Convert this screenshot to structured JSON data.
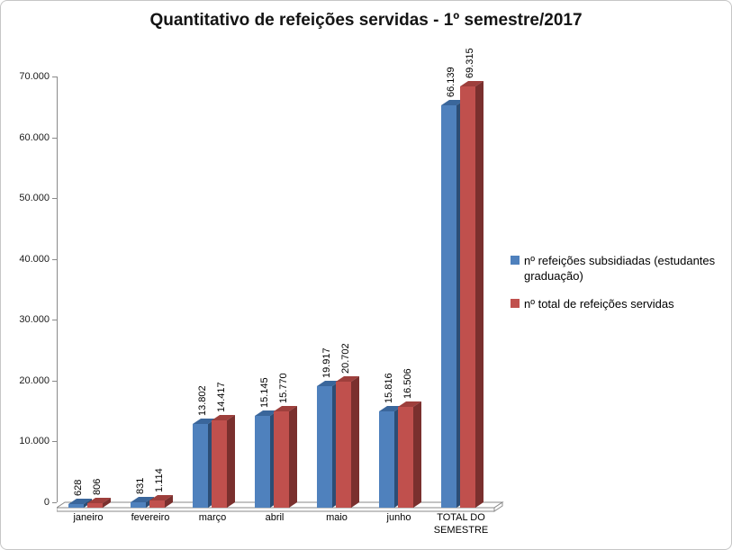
{
  "title": "Quantitativo de refeições servidas - 1º semestre/2017",
  "chart_data": {
    "type": "bar",
    "style": "3d-clustered-column",
    "title": "Quantitativo de refeições servidas - 1º semestre/2017",
    "categories": [
      "janeiro",
      "fevereiro",
      "março",
      "abril",
      "maio",
      "junho",
      "TOTAL DO SEMESTRE"
    ],
    "series": [
      {
        "name": "nº refeições subsidiadas (estudantes graduação)",
        "color": "#4F81BD",
        "color_side": "#2C4D75",
        "color_top": "#3A669B",
        "values": [
          628,
          831,
          13802,
          15145,
          19917,
          15816,
          66139
        ],
        "labels": [
          "628",
          "831",
          "13.802",
          "15.145",
          "19.917",
          "15.816",
          "66.139"
        ]
      },
      {
        "name": "nº total de refeições servidas",
        "color": "#C0504D",
        "color_side": "#7A302E",
        "color_top": "#9E3F3C",
        "values": [
          806,
          1114,
          14417,
          15770,
          20702,
          16506,
          69315
        ],
        "labels": [
          "806",
          "1.114",
          "14.417",
          "15.770",
          "20.702",
          "16.506",
          "69.315"
        ]
      }
    ],
    "xlabel": "",
    "ylabel": "",
    "ylim": [
      0,
      70000
    ],
    "ytick_step": 10000,
    "ytick_labels": [
      "0",
      "10.000",
      "20.000",
      "30.000",
      "40.000",
      "50.000",
      "60.000",
      "70.000"
    ],
    "grid": false,
    "legend_position": "right",
    "axis_color": "#8a8a8a"
  }
}
